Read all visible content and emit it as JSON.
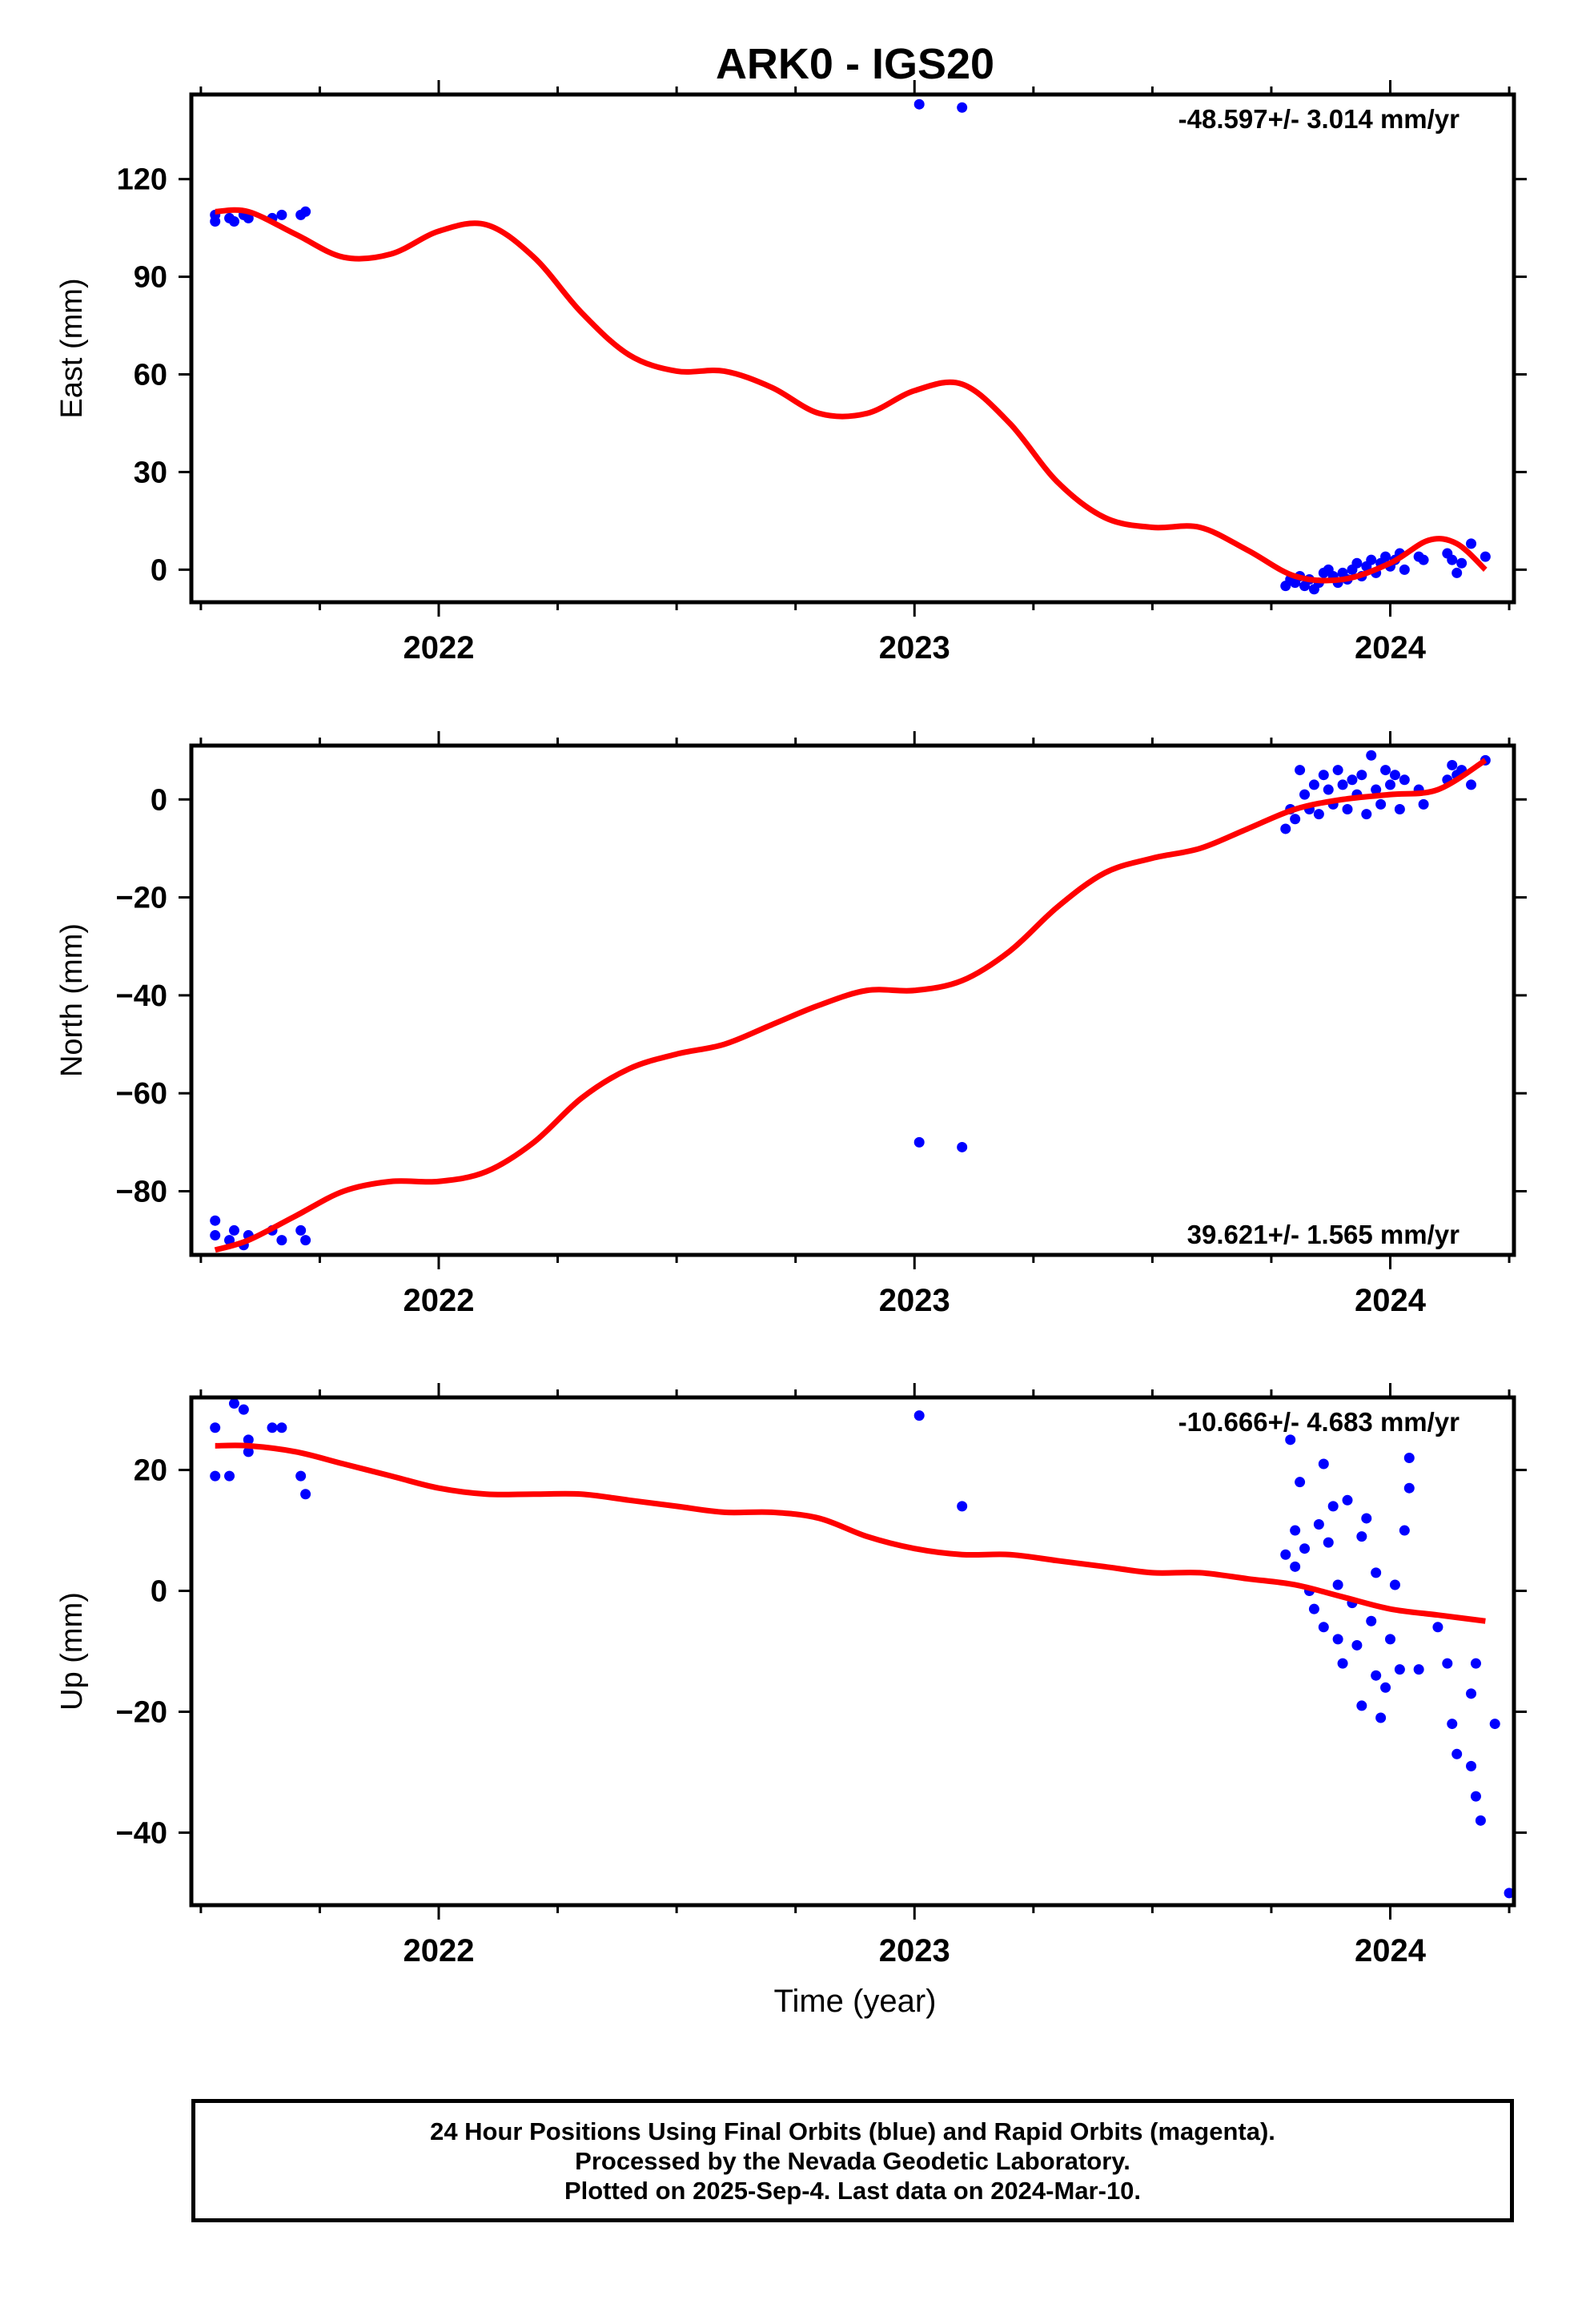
{
  "title": "ARK0 - IGS20",
  "xlabel": "Time (year)",
  "footer": {
    "line1": "24 Hour Positions Using Final Orbits (blue) and Rapid Orbits (magenta).",
    "line2": "Processed by the Nevada Geodetic Laboratory.",
    "line3": "Plotted on 2025-Sep-4. Last data on 2024-Mar-10."
  },
  "colors": {
    "points": "#0000ff",
    "fit": "#ff0000",
    "frame": "#000000"
  },
  "chart_data": [
    {
      "type": "scatter",
      "name": "east",
      "ylabel": "East (mm)",
      "rate_text": "-48.597+/- 3.014 mm/yr",
      "xlim": [
        2021.48,
        2024.26
      ],
      "ylim": [
        -10,
        146
      ],
      "yticks": [
        0,
        30,
        60,
        90,
        120
      ],
      "xticks": [
        2022,
        2023,
        2024
      ],
      "points": [
        [
          2021.53,
          107
        ],
        [
          2021.53,
          109
        ],
        [
          2021.56,
          108
        ],
        [
          2021.57,
          107
        ],
        [
          2021.59,
          109
        ],
        [
          2021.6,
          108
        ],
        [
          2021.65,
          108
        ],
        [
          2021.67,
          109
        ],
        [
          2021.71,
          109
        ],
        [
          2021.72,
          110
        ],
        [
          2023.01,
          143
        ],
        [
          2023.1,
          142
        ],
        [
          2023.78,
          -5
        ],
        [
          2023.79,
          -3
        ],
        [
          2023.8,
          -4
        ],
        [
          2023.81,
          -2
        ],
        [
          2023.82,
          -5
        ],
        [
          2023.83,
          -3
        ],
        [
          2023.84,
          -6
        ],
        [
          2023.85,
          -4
        ],
        [
          2023.86,
          -1
        ],
        [
          2023.87,
          0
        ],
        [
          2023.88,
          -2
        ],
        [
          2023.89,
          -4
        ],
        [
          2023.9,
          -1
        ],
        [
          2023.91,
          -3
        ],
        [
          2023.92,
          0
        ],
        [
          2023.93,
          2
        ],
        [
          2023.94,
          -2
        ],
        [
          2023.95,
          1
        ],
        [
          2023.96,
          3
        ],
        [
          2023.97,
          -1
        ],
        [
          2023.98,
          2
        ],
        [
          2023.99,
          4
        ],
        [
          2024.0,
          1
        ],
        [
          2024.01,
          3
        ],
        [
          2024.02,
          5
        ],
        [
          2024.03,
          0
        ],
        [
          2024.06,
          4
        ],
        [
          2024.07,
          3
        ],
        [
          2024.12,
          5
        ],
        [
          2024.13,
          3
        ],
        [
          2024.14,
          -1
        ],
        [
          2024.15,
          2
        ],
        [
          2024.17,
          8
        ],
        [
          2024.2,
          4
        ]
      ],
      "fit": [
        [
          2021.53,
          110
        ],
        [
          2021.6,
          110
        ],
        [
          2021.7,
          103
        ],
        [
          2021.8,
          96
        ],
        [
          2021.9,
          97
        ],
        [
          2022.0,
          104
        ],
        [
          2022.1,
          106
        ],
        [
          2022.2,
          96
        ],
        [
          2022.3,
          79
        ],
        [
          2022.4,
          66
        ],
        [
          2022.5,
          61
        ],
        [
          2022.6,
          61
        ],
        [
          2022.7,
          56
        ],
        [
          2022.8,
          48
        ],
        [
          2022.9,
          48
        ],
        [
          2023.0,
          55
        ],
        [
          2023.1,
          57
        ],
        [
          2023.2,
          45
        ],
        [
          2023.3,
          27
        ],
        [
          2023.4,
          16
        ],
        [
          2023.5,
          13
        ],
        [
          2023.6,
          13
        ],
        [
          2023.7,
          6
        ],
        [
          2023.8,
          -2
        ],
        [
          2023.9,
          -3
        ],
        [
          2024.0,
          2
        ],
        [
          2024.08,
          9
        ],
        [
          2024.14,
          8
        ],
        [
          2024.2,
          0
        ]
      ]
    },
    {
      "type": "scatter",
      "name": "north",
      "ylabel": "North (mm)",
      "rate_text": "39.621+/- 1.565 mm/yr",
      "xlim": [
        2021.48,
        2024.26
      ],
      "ylim": [
        -93,
        11
      ],
      "yticks": [
        -80,
        -60,
        -40,
        -20,
        0
      ],
      "xticks": [
        2022,
        2023,
        2024
      ],
      "points": [
        [
          2021.53,
          -86
        ],
        [
          2021.53,
          -89
        ],
        [
          2021.56,
          -90
        ],
        [
          2021.57,
          -88
        ],
        [
          2021.59,
          -91
        ],
        [
          2021.6,
          -89
        ],
        [
          2021.65,
          -88
        ],
        [
          2021.67,
          -90
        ],
        [
          2021.71,
          -88
        ],
        [
          2021.72,
          -90
        ],
        [
          2023.01,
          -70
        ],
        [
          2023.1,
          -71
        ],
        [
          2023.78,
          -6
        ],
        [
          2023.79,
          -2
        ],
        [
          2023.8,
          -4
        ],
        [
          2023.81,
          6
        ],
        [
          2023.82,
          1
        ],
        [
          2023.83,
          -2
        ],
        [
          2023.84,
          3
        ],
        [
          2023.85,
          -3
        ],
        [
          2023.86,
          5
        ],
        [
          2023.87,
          2
        ],
        [
          2023.88,
          -1
        ],
        [
          2023.89,
          6
        ],
        [
          2023.9,
          3
        ],
        [
          2023.91,
          -2
        ],
        [
          2023.92,
          4
        ],
        [
          2023.93,
          1
        ],
        [
          2023.94,
          5
        ],
        [
          2023.95,
          -3
        ],
        [
          2023.96,
          9
        ],
        [
          2023.97,
          2
        ],
        [
          2023.98,
          -1
        ],
        [
          2023.99,
          6
        ],
        [
          2024.0,
          3
        ],
        [
          2024.01,
          5
        ],
        [
          2024.02,
          -2
        ],
        [
          2024.03,
          4
        ],
        [
          2024.06,
          2
        ],
        [
          2024.07,
          -1
        ],
        [
          2024.12,
          4
        ],
        [
          2024.13,
          7
        ],
        [
          2024.14,
          5
        ],
        [
          2024.15,
          6
        ],
        [
          2024.17,
          3
        ],
        [
          2024.2,
          8
        ]
      ],
      "fit": [
        [
          2021.53,
          -92
        ],
        [
          2021.6,
          -90
        ],
        [
          2021.7,
          -85
        ],
        [
          2021.8,
          -80
        ],
        [
          2021.9,
          -78
        ],
        [
          2022.0,
          -78
        ],
        [
          2022.1,
          -76
        ],
        [
          2022.2,
          -70
        ],
        [
          2022.3,
          -61
        ],
        [
          2022.4,
          -55
        ],
        [
          2022.5,
          -52
        ],
        [
          2022.6,
          -50
        ],
        [
          2022.7,
          -46
        ],
        [
          2022.8,
          -42
        ],
        [
          2022.9,
          -39
        ],
        [
          2023.0,
          -39
        ],
        [
          2023.1,
          -37
        ],
        [
          2023.2,
          -31
        ],
        [
          2023.3,
          -22
        ],
        [
          2023.4,
          -15
        ],
        [
          2023.5,
          -12
        ],
        [
          2023.6,
          -10
        ],
        [
          2023.7,
          -6
        ],
        [
          2023.8,
          -2
        ],
        [
          2023.9,
          0
        ],
        [
          2024.0,
          1
        ],
        [
          2024.1,
          2
        ],
        [
          2024.2,
          8
        ]
      ]
    },
    {
      "type": "scatter",
      "name": "up",
      "ylabel": "Up (mm)",
      "rate_text": "-10.666+/- 4.683 mm/yr",
      "xlim": [
        2021.48,
        2024.26
      ],
      "ylim": [
        -52,
        32
      ],
      "yticks": [
        -40,
        -20,
        0,
        20
      ],
      "xticks": [
        2022,
        2023,
        2024
      ],
      "points": [
        [
          2021.53,
          27
        ],
        [
          2021.53,
          19
        ],
        [
          2021.56,
          19
        ],
        [
          2021.57,
          31
        ],
        [
          2021.59,
          30
        ],
        [
          2021.6,
          25
        ],
        [
          2021.6,
          23
        ],
        [
          2021.65,
          27
        ],
        [
          2021.67,
          27
        ],
        [
          2021.71,
          19
        ],
        [
          2021.72,
          16
        ],
        [
          2023.01,
          29
        ],
        [
          2023.1,
          14
        ],
        [
          2023.78,
          6
        ],
        [
          2023.79,
          25
        ],
        [
          2023.8,
          10
        ],
        [
          2023.8,
          4
        ],
        [
          2023.81,
          18
        ],
        [
          2023.82,
          7
        ],
        [
          2023.83,
          0
        ],
        [
          2023.84,
          -3
        ],
        [
          2023.85,
          11
        ],
        [
          2023.86,
          -6
        ],
        [
          2023.86,
          21
        ],
        [
          2023.87,
          8
        ],
        [
          2023.88,
          14
        ],
        [
          2023.89,
          -8
        ],
        [
          2023.89,
          1
        ],
        [
          2023.9,
          -12
        ],
        [
          2023.91,
          15
        ],
        [
          2023.92,
          -2
        ],
        [
          2023.93,
          -9
        ],
        [
          2023.94,
          -19
        ],
        [
          2023.94,
          9
        ],
        [
          2023.95,
          12
        ],
        [
          2023.96,
          -5
        ],
        [
          2023.97,
          -14
        ],
        [
          2023.97,
          3
        ],
        [
          2023.98,
          -21
        ],
        [
          2023.99,
          -16
        ],
        [
          2024.0,
          -8
        ],
        [
          2024.01,
          1
        ],
        [
          2024.02,
          -13
        ],
        [
          2024.03,
          10
        ],
        [
          2024.04,
          22
        ],
        [
          2024.04,
          17
        ],
        [
          2024.06,
          -13
        ],
        [
          2024.1,
          -6
        ],
        [
          2024.12,
          -12
        ],
        [
          2024.13,
          -22
        ],
        [
          2024.14,
          -27
        ],
        [
          2024.17,
          -17
        ],
        [
          2024.17,
          -29
        ],
        [
          2024.18,
          -12
        ],
        [
          2024.18,
          -34
        ],
        [
          2024.19,
          -38
        ],
        [
          2024.22,
          -22
        ],
        [
          2024.25,
          -50
        ]
      ],
      "fit": [
        [
          2021.53,
          24
        ],
        [
          2021.6,
          24
        ],
        [
          2021.7,
          23
        ],
        [
          2021.8,
          21
        ],
        [
          2021.9,
          19
        ],
        [
          2022.0,
          17
        ],
        [
          2022.1,
          16
        ],
        [
          2022.2,
          16
        ],
        [
          2022.3,
          16
        ],
        [
          2022.4,
          15
        ],
        [
          2022.5,
          14
        ],
        [
          2022.6,
          13
        ],
        [
          2022.7,
          13
        ],
        [
          2022.8,
          12
        ],
        [
          2022.9,
          9
        ],
        [
          2023.0,
          7
        ],
        [
          2023.1,
          6
        ],
        [
          2023.2,
          6
        ],
        [
          2023.3,
          5
        ],
        [
          2023.4,
          4
        ],
        [
          2023.5,
          3
        ],
        [
          2023.6,
          3
        ],
        [
          2023.7,
          2
        ],
        [
          2023.8,
          1
        ],
        [
          2023.9,
          -1
        ],
        [
          2024.0,
          -3
        ],
        [
          2024.1,
          -4
        ],
        [
          2024.2,
          -5
        ]
      ]
    }
  ]
}
